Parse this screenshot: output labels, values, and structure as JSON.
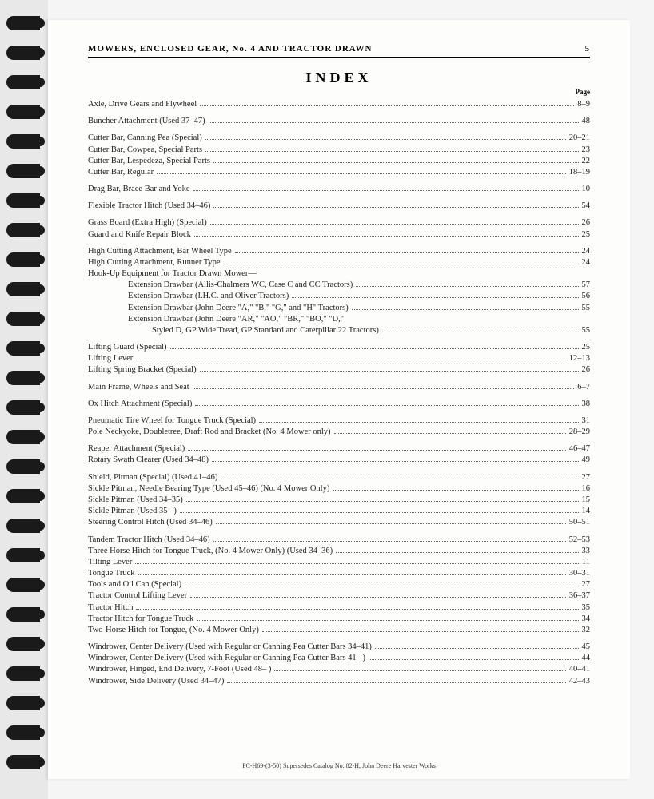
{
  "header": {
    "title": "MOWERS, ENCLOSED GEAR, No. 4 AND TRACTOR DRAWN",
    "pageNum": "5"
  },
  "indexTitle": "INDEX",
  "pageLabel": "Page",
  "groups": [
    [
      {
        "t": "Axle, Drive Gears and Flywheel",
        "p": "8–9"
      }
    ],
    [
      {
        "t": "Buncher Attachment (Used 37–47)",
        "p": "48"
      }
    ],
    [
      {
        "t": "Cutter Bar, Canning Pea (Special)",
        "p": "20–21"
      },
      {
        "t": "Cutter Bar, Cowpea, Special Parts",
        "p": "23"
      },
      {
        "t": "Cutter Bar, Lespedeza, Special Parts",
        "p": "22"
      },
      {
        "t": "Cutter Bar, Regular",
        "p": "18–19"
      }
    ],
    [
      {
        "t": "Drag Bar, Brace Bar and Yoke",
        "p": "10"
      }
    ],
    [
      {
        "t": "Flexible Tractor Hitch (Used 34–46)",
        "p": "54"
      }
    ],
    [
      {
        "t": "Grass Board (Extra High) (Special)",
        "p": "26"
      },
      {
        "t": "Guard and Knife Repair Block",
        "p": "25"
      }
    ],
    [
      {
        "t": "High Cutting Attachment, Bar Wheel Type",
        "p": "24"
      },
      {
        "t": "High Cutting Attachment, Runner Type",
        "p": "24"
      },
      {
        "t": "Hook-Up Equipment for Tractor Drawn Mower—",
        "p": ""
      },
      {
        "t": "Extension Drawbar (Allis-Chalmers WC, Case C and CC Tractors)",
        "p": "57",
        "indent": 1
      },
      {
        "t": "Extension Drawbar (I.H.C. and Oliver Tractors)",
        "p": "56",
        "indent": 1
      },
      {
        "t": "Extension Drawbar (John Deere \"A,\" \"B,\" \"G,\" and \"H\" Tractors)",
        "p": "55",
        "indent": 1
      },
      {
        "t": "Extension Drawbar (John Deere \"AR,\" \"AO,\" \"BR,\" \"BO,\" \"D,\"",
        "p": "",
        "indent": 1
      },
      {
        "t": "Styled D, GP Wide Tread, GP Standard and Caterpillar 22 Tractors)",
        "p": "55",
        "indent": 2
      }
    ],
    [
      {
        "t": "Lifting Guard (Special)",
        "p": "25"
      },
      {
        "t": "Lifting Lever",
        "p": "12–13"
      },
      {
        "t": "Lifting Spring Bracket (Special)",
        "p": "26"
      }
    ],
    [
      {
        "t": "Main Frame, Wheels and Seat",
        "p": "6–7"
      }
    ],
    [
      {
        "t": "Ox Hitch Attachment (Special)",
        "p": "38"
      }
    ],
    [
      {
        "t": "Pneumatic Tire Wheel for Tongue Truck (Special)",
        "p": "31"
      },
      {
        "t": "Pole Neckyoke, Doubletree, Draft Rod and Bracket (No. 4 Mower only)",
        "p": "28–29"
      }
    ],
    [
      {
        "t": "Reaper Attachment (Special)",
        "p": "46–47"
      },
      {
        "t": "Rotary Swath Clearer (Used 34–48)",
        "p": "49"
      }
    ],
    [
      {
        "t": "Shield, Pitman (Special) (Used 41–46)",
        "p": "27"
      },
      {
        "t": "Sickle Pitman, Needle Bearing Type (Used 45–46) (No. 4 Mower Only)",
        "p": "16"
      },
      {
        "t": "Sickle Pitman (Used 34–35)",
        "p": "15"
      },
      {
        "t": "Sickle Pitman (Used 35– )",
        "p": "14"
      },
      {
        "t": "Steering Control Hitch (Used 34–46)",
        "p": "50–51"
      }
    ],
    [
      {
        "t": "Tandem Tractor Hitch (Used 34–46)",
        "p": "52–53"
      },
      {
        "t": "Three Horse Hitch for Tongue Truck, (No. 4 Mower Only) (Used 34–36)",
        "p": "33"
      },
      {
        "t": "Tilting Lever",
        "p": "11"
      },
      {
        "t": "Tongue Truck",
        "p": "30–31"
      },
      {
        "t": "Tools and Oil Can (Special)",
        "p": "27"
      },
      {
        "t": "Tractor Control Lifting Lever",
        "p": "36–37"
      },
      {
        "t": "Tractor Hitch",
        "p": "35"
      },
      {
        "t": "Tractor Hitch for Tongue Truck",
        "p": "34"
      },
      {
        "t": "Two-Horse Hitch for Tongue, (No. 4 Mower Only)",
        "p": "32"
      }
    ],
    [
      {
        "t": "Windrower, Center Delivery (Used with Regular or Canning Pea Cutter Bars 34–41)",
        "p": "45"
      },
      {
        "t": "Windrower, Center Delivery (Used with Regular or Canning Pea Cutter Bars 41– )",
        "p": "44"
      },
      {
        "t": "Windrower, Hinged, End Delivery, 7-Foot (Used 48– )",
        "p": "40–41"
      },
      {
        "t": "Windrower, Side Delivery (Used 34–47)",
        "p": "42–43"
      }
    ]
  ],
  "footer": "PC-H69-(3-50) Supersedes Catalog No. 82-H, John Deere Harvester Works"
}
